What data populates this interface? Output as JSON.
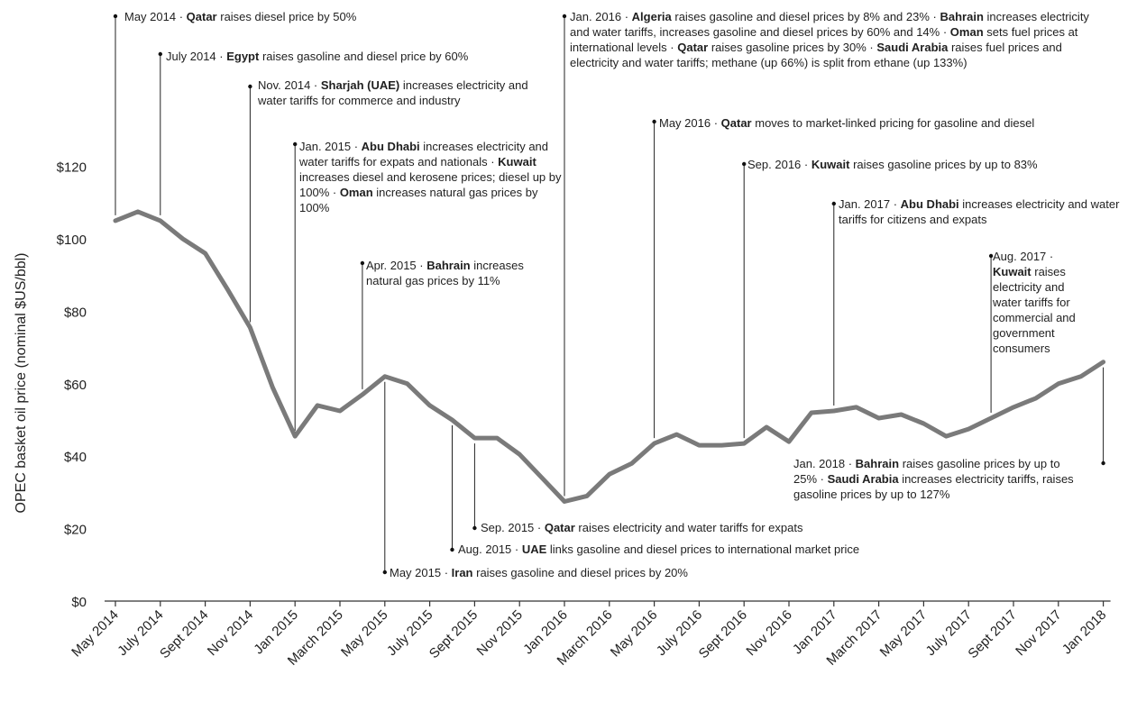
{
  "chart_data": {
    "type": "line",
    "ylabel": "OPEC basket oil price (nominal $US/bbl)",
    "ylim": [
      0,
      120
    ],
    "yticks": [
      "$0",
      "$20",
      "$40",
      "$60",
      "$80",
      "$100",
      "$120"
    ],
    "ytick_values": [
      0,
      20,
      40,
      60,
      80,
      100,
      120
    ],
    "x_tick_labels": [
      "May 2014",
      "July 2014",
      "Sept 2014",
      "Nov 2014",
      "Jan 2015",
      "March 2015",
      "May 2015",
      "July 2015",
      "Sept 2015",
      "Nov 2015",
      "Jan 2016",
      "March 2016",
      "May 2016",
      "July 2016",
      "Sept 2016",
      "Nov 2016",
      "Jan 2017",
      "March 2017",
      "May 2017",
      "July 2017",
      "Sept 2017",
      "Nov 2017",
      "Jan 2018"
    ],
    "x": [
      "May 2014",
      "Jun 2014",
      "Jul 2014",
      "Aug 2014",
      "Sep 2014",
      "Oct 2014",
      "Nov 2014",
      "Dec 2014",
      "Jan 2015",
      "Feb 2015",
      "Mar 2015",
      "Apr 2015",
      "May 2015",
      "Jun 2015",
      "Jul 2015",
      "Aug 2015",
      "Sep 2015",
      "Oct 2015",
      "Nov 2015",
      "Dec 2015",
      "Jan 2016",
      "Feb 2016",
      "Mar 2016",
      "Apr 2016",
      "May 2016",
      "Jun 2016",
      "Jul 2016",
      "Aug 2016",
      "Sep 2016",
      "Oct 2016",
      "Nov 2016",
      "Dec 2016",
      "Jan 2017",
      "Feb 2017",
      "Mar 2017",
      "Apr 2017",
      "May 2017",
      "Jun 2017",
      "Jul 2017",
      "Aug 2017",
      "Sep 2017",
      "Oct 2017",
      "Nov 2017",
      "Dec 2017",
      "Jan 2018"
    ],
    "series": [
      {
        "values": [
          105,
          107.5,
          105,
          100,
          96,
          86,
          75.5,
          59,
          45.5,
          54,
          52.5,
          57,
          62,
          60,
          54,
          50,
          45,
          45,
          40.5,
          34,
          27.5,
          29,
          35,
          38,
          43.5,
          46,
          43,
          43,
          43.5,
          48,
          44,
          52,
          52.5,
          53.5,
          50.5,
          51.5,
          49,
          45.5,
          47.5,
          50.5,
          53.5,
          56,
          60,
          62,
          66
        ]
      }
    ],
    "line_color": "#7a7a7a",
    "annotations": [
      {
        "date": "May 2014",
        "title": "May 2014",
        "parts": [
          [
            "Qatar",
            " raises diesel price by 50%"
          ]
        ]
      },
      {
        "date": "July 2014",
        "title": "July 2014",
        "parts": [
          [
            "Egypt",
            " raises gasoline and diesel price by 60%"
          ]
        ]
      },
      {
        "date": "Nov. 2014",
        "title": "Nov. 2014",
        "parts": [
          [
            "Sharjah (UAE)",
            " increases electricity and water tariffs for commerce and industry"
          ]
        ]
      },
      {
        "date": "Jan. 2015",
        "title": "Jan. 2015",
        "parts": [
          [
            "Abu Dhabi",
            " increases electricity and water tariffs for expats and nationals"
          ],
          [
            "Kuwait",
            " increases diesel and kerosene prices; diesel up by 100%"
          ],
          [
            "Oman",
            " increases natural gas prices by 100%"
          ]
        ]
      },
      {
        "date": "Apr. 2015",
        "title": "Apr. 2015",
        "parts": [
          [
            "Bahrain",
            " increases natural gas prices by 11%"
          ]
        ]
      },
      {
        "date": "May 2015",
        "title": "May 2015",
        "parts": [
          [
            "Iran",
            " raises gasoline and diesel prices by 20%"
          ]
        ]
      },
      {
        "date": "Aug. 2015",
        "title": "Aug. 2015",
        "parts": [
          [
            "UAE",
            " links gasoline and diesel prices to international market price"
          ]
        ]
      },
      {
        "date": "Sep. 2015",
        "title": "Sep. 2015",
        "parts": [
          [
            "Qatar",
            " raises electricity and water tariffs for expats"
          ]
        ]
      },
      {
        "date": "Jan. 2016",
        "title": "Jan. 2016",
        "parts": [
          [
            "Algeria",
            " raises gasoline and diesel prices by 8% and 23%"
          ],
          [
            "Bahrain",
            " increases electricity and water tariffs, increases gasoline and diesel prices by 60% and 14%"
          ],
          [
            "Oman",
            " sets fuel prices at international levels"
          ],
          [
            "Qatar",
            " raises gasoline prices by 30%"
          ],
          [
            "Saudi Arabia",
            " raises fuel prices and electricity and water tariffs; methane (up 66%) is split from ethane (up 133%)"
          ]
        ]
      },
      {
        "date": "May 2016",
        "title": "May 2016",
        "parts": [
          [
            "Qatar",
            " moves to market-linked pricing for gasoline and diesel"
          ]
        ]
      },
      {
        "date": "Sep. 2016",
        "title": "Sep. 2016",
        "parts": [
          [
            "Kuwait",
            " raises gasoline prices by up to 83%"
          ]
        ]
      },
      {
        "date": "Jan. 2017",
        "title": "Jan. 2017",
        "parts": [
          [
            "Abu Dhabi",
            " increases electricity and water tariffs for citizens and expats"
          ]
        ]
      },
      {
        "date": "Aug. 2017",
        "title": "Aug. 2017",
        "parts": [
          [
            "Kuwait",
            " raises electricity and water tariffs for commercial and government consumers"
          ]
        ]
      },
      {
        "date": "Jan. 2018",
        "title": "Jan. 2018",
        "parts": [
          [
            "Bahrain",
            " raises gasoline prices by up to 25%"
          ],
          [
            "Saudi Arabia",
            " increases electricity tariffs, raises gasoline prices by up to 127%"
          ]
        ]
      }
    ]
  }
}
